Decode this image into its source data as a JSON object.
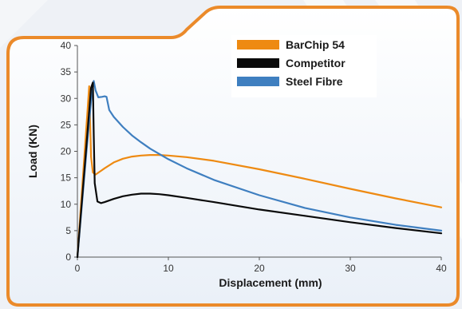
{
  "chart_data": {
    "type": "line",
    "title": "",
    "xlabel": "Displacement (mm)",
    "ylabel": "Load (KN)",
    "xlim": [
      0,
      40
    ],
    "ylim": [
      0,
      40
    ],
    "xticks": [
      0,
      10,
      20,
      30,
      40
    ],
    "yticks": [
      0,
      5,
      10,
      15,
      20,
      25,
      30,
      35,
      40
    ],
    "grid": false,
    "legend_position": "top-right",
    "series": [
      {
        "name": "BarChip 54",
        "color": "#ee8a12",
        "x": [
          0,
          1.3,
          1.5,
          1.7,
          2.0,
          3.0,
          4.0,
          5.0,
          6.0,
          7.0,
          8.0,
          9.0,
          10.0,
          12.0,
          15.0,
          20.0,
          25.0,
          30.0,
          35.0,
          40.0
        ],
        "y": [
          0,
          32.3,
          19.0,
          16.0,
          15.6,
          16.8,
          17.9,
          18.6,
          19.0,
          19.2,
          19.3,
          19.3,
          19.2,
          18.9,
          18.2,
          16.6,
          14.8,
          12.9,
          11.1,
          9.4
        ]
      },
      {
        "name": "Competitor",
        "color": "#0a0a0a",
        "x": [
          0,
          1.5,
          1.7,
          1.8,
          1.9,
          2.2,
          2.6,
          3.0,
          4.0,
          5.0,
          6.0,
          7.0,
          8.0,
          9.0,
          10.0,
          12.0,
          15.0,
          20.0,
          25.0,
          30.0,
          35.0,
          40.0
        ],
        "y": [
          0,
          32.0,
          33.0,
          23.0,
          14.0,
          10.5,
          10.2,
          10.4,
          11.0,
          11.5,
          11.8,
          12.0,
          12.0,
          11.9,
          11.7,
          11.2,
          10.4,
          9.0,
          7.8,
          6.6,
          5.5,
          4.5
        ]
      },
      {
        "name": "Steel Fibre",
        "color": "#3f7fc0",
        "x": [
          0,
          1.0,
          1.5,
          1.8,
          2.0,
          2.3,
          2.7,
          3.0,
          3.2,
          3.5,
          4.0,
          5.0,
          6.0,
          7.0,
          8.0,
          10.0,
          12.0,
          15.0,
          20.0,
          25.0,
          30.0,
          35.0,
          40.0
        ],
        "y": [
          0,
          20.0,
          29.5,
          33.3,
          31.5,
          30.2,
          30.3,
          30.4,
          30.3,
          27.8,
          26.5,
          24.6,
          23.0,
          21.7,
          20.5,
          18.5,
          16.8,
          14.6,
          11.7,
          9.3,
          7.5,
          6.1,
          5.0
        ]
      }
    ]
  }
}
